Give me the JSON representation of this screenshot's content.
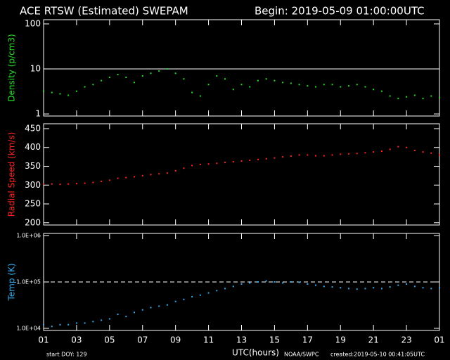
{
  "header": {
    "title": "ACE RTSW (Estimated) SWEPAM",
    "begin": "Begin: 2019-05-09 01:00:00UTC"
  },
  "chart_data": [
    {
      "type": "scatter",
      "y_label": "Density (p/cm3)",
      "color": "#22dd22",
      "log_scale": true,
      "xlim": [
        1,
        25
      ],
      "ylim": [
        0.9,
        124
      ],
      "yticks": [
        1,
        10,
        100
      ],
      "hline": 10,
      "hline_style": "solid",
      "x": [
        1,
        1.5,
        2,
        2.5,
        3,
        3.5,
        4,
        4.5,
        5,
        5.5,
        6,
        6.5,
        7,
        7.5,
        8,
        8.5,
        9,
        9.5,
        10,
        10.5,
        11,
        11.5,
        12,
        12.5,
        13,
        13.5,
        14,
        14.5,
        15,
        15.5,
        16,
        16.5,
        17,
        17.5,
        18,
        18.5,
        19,
        19.5,
        20,
        20.5,
        21,
        21.5,
        22,
        22.5,
        23,
        23.5,
        24,
        24.5,
        25
      ],
      "values": [
        3.2,
        3.0,
        2.8,
        2.6,
        3.2,
        4.0,
        4.5,
        5.5,
        6.5,
        7.5,
        6.5,
        5.0,
        7.0,
        8.0,
        9.0,
        10.0,
        8.0,
        6.0,
        3.0,
        2.5,
        4.5,
        7.0,
        6.0,
        3.5,
        4.5,
        4.0,
        5.5,
        6.0,
        5.5,
        5.0,
        4.8,
        4.5,
        4.2,
        4.0,
        4.5,
        4.5,
        4.0,
        4.2,
        4.5,
        4.0,
        3.5,
        3.2,
        2.5,
        2.2,
        2.4,
        2.6,
        2.2,
        2.5,
        2.3
      ]
    },
    {
      "type": "scatter",
      "y_label": "Radial Speed (km/s)",
      "color": "#ff2222",
      "log_scale": false,
      "xlim": [
        1,
        25
      ],
      "ylim": [
        194,
        463
      ],
      "yticks": [
        200,
        250,
        300,
        350,
        400,
        450
      ],
      "x": [
        1,
        1.5,
        2,
        2.5,
        3,
        3.5,
        4,
        4.5,
        5,
        5.5,
        6,
        6.5,
        7,
        7.5,
        8,
        8.5,
        9,
        9.5,
        10,
        10.5,
        11,
        11.5,
        12,
        12.5,
        13,
        13.5,
        14,
        14.5,
        15,
        15.5,
        16,
        16.5,
        17,
        17.5,
        18,
        18.5,
        19,
        19.5,
        20,
        20.5,
        21,
        21.5,
        22,
        22.5,
        23,
        23.5,
        24,
        24.5,
        25
      ],
      "values": [
        303,
        303,
        302,
        303,
        304,
        305,
        307,
        310,
        313,
        318,
        320,
        322,
        325,
        328,
        330,
        332,
        338,
        345,
        352,
        355,
        356,
        358,
        360,
        362,
        364,
        366,
        368,
        370,
        372,
        375,
        377,
        380,
        380,
        378,
        378,
        380,
        382,
        383,
        384,
        386,
        388,
        390,
        395,
        402,
        400,
        392,
        388,
        385,
        380
      ]
    },
    {
      "type": "scatter",
      "y_label": "Temp (K)",
      "color": "#33aaee",
      "log_scale": true,
      "xlim": [
        1,
        25
      ],
      "ylim": [
        9000,
        1110000
      ],
      "yticks": [
        {
          "value": 10000,
          "label": "1.0E+04"
        },
        {
          "value": 100000,
          "label": "1.0E+05"
        },
        {
          "value": 1000000,
          "label": "1.0E+06"
        }
      ],
      "hline": 100000,
      "hline_style": "dashed",
      "xticks": [
        {
          "value": 1,
          "label": "01"
        },
        {
          "value": 3,
          "label": "03"
        },
        {
          "value": 5,
          "label": "05"
        },
        {
          "value": 7,
          "label": "07"
        },
        {
          "value": 9,
          "label": "09"
        },
        11,
        13,
        15,
        17,
        19,
        21,
        23,
        {
          "value": 25,
          "label": "01"
        }
      ],
      "x_label": "UTC(hours)",
      "x": [
        1,
        1.5,
        2,
        2.5,
        3,
        3.5,
        4,
        4.5,
        5,
        5.5,
        6,
        6.5,
        7,
        7.5,
        8,
        8.5,
        9,
        9.5,
        10,
        10.5,
        11,
        11.5,
        12,
        12.5,
        13,
        13.5,
        14,
        14.5,
        15,
        15.5,
        16,
        16.5,
        17,
        17.5,
        18,
        18.5,
        19,
        19.5,
        20,
        20.5,
        21,
        21.5,
        22,
        22.5,
        23,
        23.5,
        24,
        24.5,
        25
      ],
      "values": [
        12000,
        11000,
        12000,
        12000,
        13000,
        13000,
        14000,
        15000,
        16000,
        20000,
        18000,
        22000,
        25000,
        28000,
        30000,
        32000,
        38000,
        42000,
        48000,
        52000,
        58000,
        65000,
        72000,
        80000,
        90000,
        95000,
        100000,
        105000,
        100000,
        95000,
        100000,
        98000,
        90000,
        85000,
        80000,
        78000,
        75000,
        72000,
        70000,
        72000,
        75000,
        72000,
        78000,
        85000,
        90000,
        80000,
        75000,
        72000,
        75000
      ]
    }
  ],
  "footer": {
    "start": "start DOY: 129",
    "source": "NOAA/SWPC",
    "created": "created:2019-05-10 00:41:05UTC"
  }
}
